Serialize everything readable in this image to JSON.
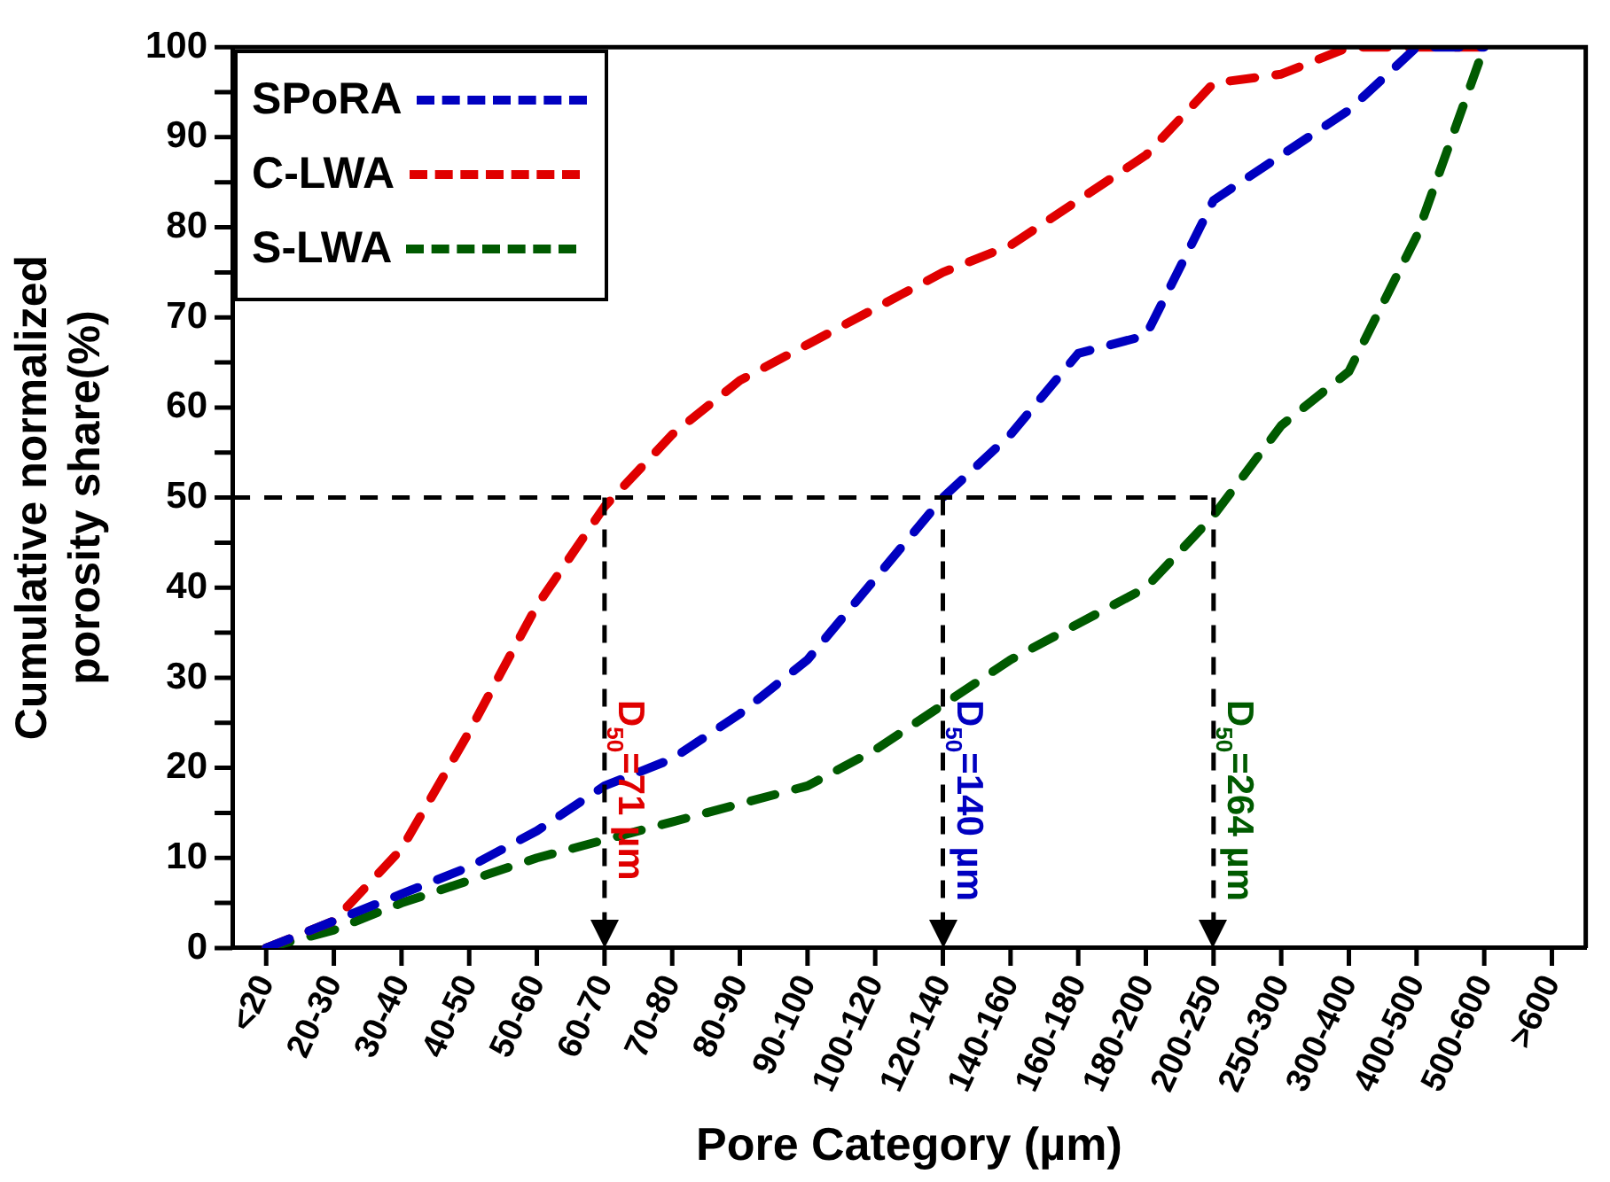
{
  "chart_data": {
    "type": "line",
    "xlabel": "Pore Category (µm)",
    "ylabel": "Cumulative normalized porosity share(%)",
    "categories": [
      "<20",
      "20-30",
      "30-40",
      "40-50",
      "50-60",
      "60-70",
      "70-80",
      "80-90",
      "90-100",
      "100-120",
      "120-140",
      "140-160",
      "160-180",
      "180-200",
      "200-250",
      "250-300",
      "300-400",
      "400-500",
      "500-600",
      ">600"
    ],
    "series": [
      {
        "name": "SPoRA",
        "color": "#0000c0",
        "values": [
          0,
          3,
          6,
          9,
          13,
          18,
          21,
          26,
          32,
          41,
          50,
          57,
          66,
          68,
          83,
          88,
          93,
          100,
          100,
          null
        ]
      },
      {
        "name": "C-LWA",
        "color": "#e00000",
        "values": [
          0,
          3,
          11,
          24,
          38,
          49,
          57,
          63,
          67,
          71,
          75,
          78,
          83,
          88,
          96,
          97,
          100,
          100,
          100,
          null
        ]
      },
      {
        "name": "S-LWA",
        "color": "#005a00",
        "values": [
          0,
          2,
          5,
          7.5,
          10,
          12,
          14,
          16,
          18,
          22,
          27,
          32,
          36,
          40,
          48,
          58,
          64,
          79,
          100,
          null
        ]
      }
    ],
    "ylim": [
      0,
      100
    ],
    "yticks": [
      0,
      {
        "value": 5,
        "label": null
      },
      10,
      {
        "value": 15,
        "label": null
      },
      20,
      {
        "value": 25,
        "label": null
      },
      30,
      {
        "value": 35,
        "label": null
      },
      40,
      {
        "value": 45,
        "label": null
      },
      50,
      {
        "value": 55,
        "label": null
      },
      60,
      {
        "value": 65,
        "label": null
      },
      70,
      {
        "value": 75,
        "label": null
      },
      80,
      {
        "value": 85,
        "label": null
      },
      90,
      {
        "value": 95,
        "label": null
      },
      100
    ],
    "ref_lines": [
      {
        "axis": "y",
        "value": 50,
        "color": "#000000",
        "line_style": "dashed"
      },
      {
        "axis": "x",
        "value": "60-70",
        "label": "D$_{50}$=71 µm",
        "color": "#000000",
        "line_style": "dashed"
      },
      {
        "axis": "x",
        "value": "120-140",
        "label": "D$_{50}$=140 µm",
        "color": "#000000",
        "line_style": "dashed"
      },
      {
        "axis": "x",
        "value": "200-250",
        "label": "D$_{50}$=264 µm",
        "color": "#000000",
        "line_style": "dashed"
      }
    ],
    "legend": "top left",
    "grid": false,
    "line_style": "dashed",
    "marker": "none"
  }
}
